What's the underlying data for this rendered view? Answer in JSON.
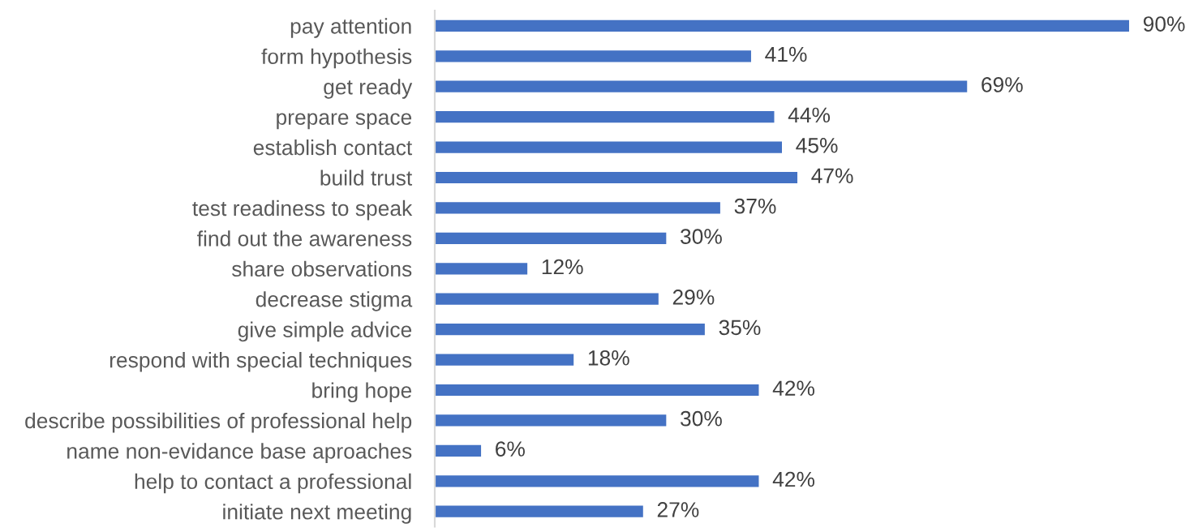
{
  "chart_data": {
    "type": "bar",
    "orientation": "horizontal",
    "categories": [
      "pay attention",
      "form hypothesis",
      "get ready",
      "prepare space",
      "establish contact",
      "build trust",
      "test readiness to speak",
      "find out the awareness",
      "share observations",
      "decrease stigma",
      "give simple advice",
      "respond with special techniques",
      "bring hope",
      "describe possibilities of professional help",
      "name non-evidance base aproaches",
      "help to contact a professional",
      "initiate next meeting"
    ],
    "values": [
      90,
      41,
      69,
      44,
      45,
      47,
      37,
      30,
      12,
      29,
      35,
      18,
      42,
      30,
      6,
      42,
      27
    ],
    "value_labels": [
      "90%",
      "41%",
      "69%",
      "44%",
      "45%",
      "47%",
      "37%",
      "30%",
      "12%",
      "29%",
      "35%",
      "18%",
      "42%",
      "30%",
      "6%",
      "42%",
      "27%"
    ],
    "color": "#4472c4",
    "grid": false,
    "legend": false
  }
}
